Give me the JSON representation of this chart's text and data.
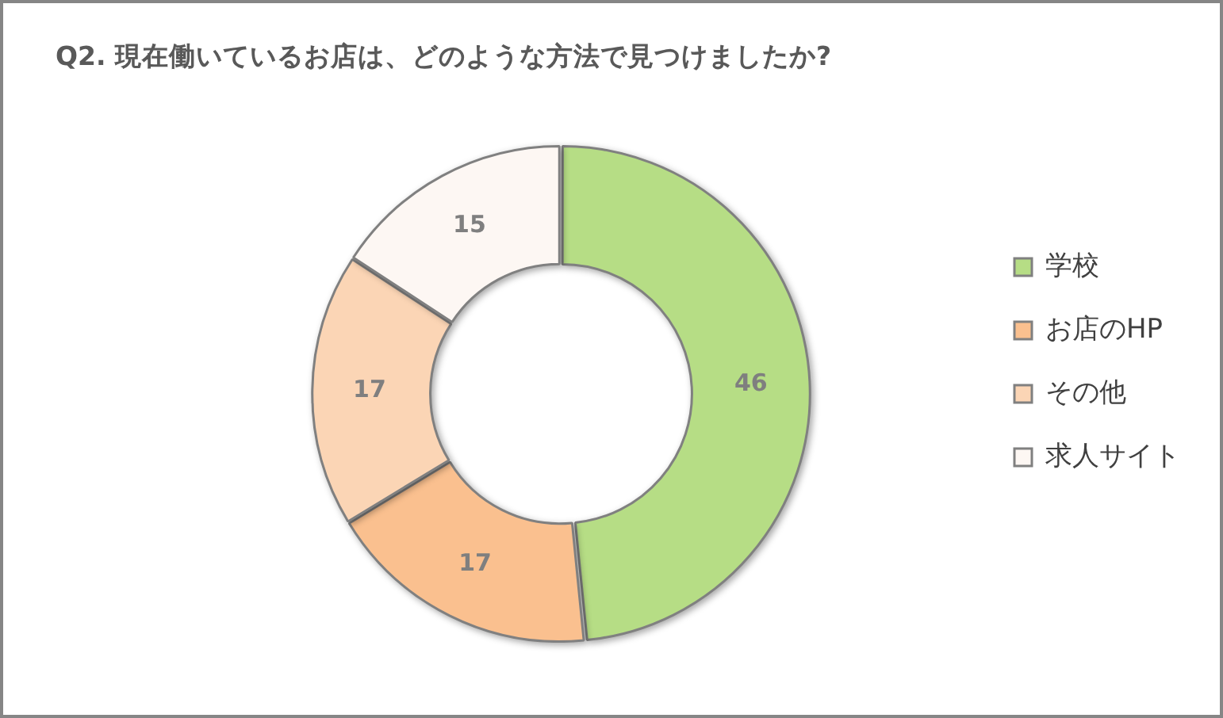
{
  "chart_data": {
    "type": "donut",
    "title": "Q2. 現在働いているお店は、どのような方法で見つけましたか?",
    "categories": [
      "学校",
      "お店のHP",
      "その他",
      "求人サイト"
    ],
    "values": [
      46,
      17,
      17,
      15
    ],
    "colors": [
      "#b6dd85",
      "#fac08f",
      "#fbd5b5",
      "#fdf7f3"
    ],
    "data_labels": true,
    "legend": "right"
  }
}
